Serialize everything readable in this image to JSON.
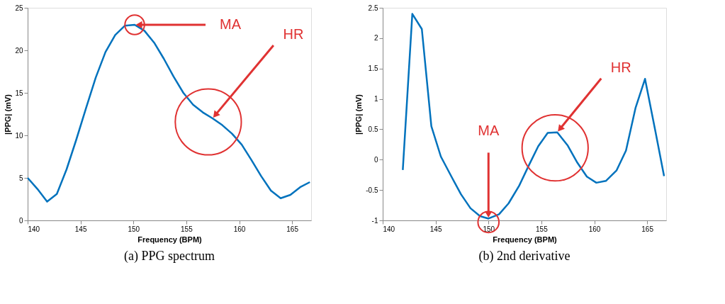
{
  "chart_data": [
    {
      "type": "line",
      "title": "(a) PPG spectrum",
      "xlabel": "Frequency (BPM)",
      "ylabel": "|PPG| (mV)",
      "x": [
        140,
        140.92,
        141.84,
        142.76,
        143.68,
        144.6,
        145.52,
        146.44,
        147.36,
        148.28,
        149.2,
        150.12,
        151.04,
        151.96,
        152.88,
        153.8,
        154.72,
        155.64,
        156.56,
        157.48,
        158.4,
        159.32,
        160.24,
        161.16,
        162.08,
        163.0,
        163.92,
        164.84,
        165.76,
        166.68
      ],
      "series": [
        {
          "color": "#0072bd",
          "values": [
            5.0,
            3.7,
            2.2,
            3.1,
            6.0,
            9.5,
            13.2,
            16.8,
            19.8,
            21.8,
            22.9,
            23.0,
            22.3,
            20.9,
            19.0,
            16.9,
            15.0,
            13.6,
            12.7,
            12.0,
            11.2,
            10.2,
            8.9,
            7.1,
            5.2,
            3.5,
            2.6,
            3.0,
            3.9,
            4.5
          ]
        }
      ],
      "xlim": [
        140,
        166.8
      ],
      "xticks": [
        140,
        145,
        150,
        155,
        160,
        165
      ],
      "ylim": [
        0,
        25
      ],
      "yticks": [
        0,
        5,
        10,
        15,
        20,
        25
      ],
      "grid": false,
      "marker": "none",
      "annotations": [
        {
          "text": "MA",
          "x": 150.12,
          "y": 23.0
        },
        {
          "text": "HR",
          "x": 157.48,
          "y": 12.0
        }
      ]
    },
    {
      "type": "line",
      "title": "(b) 2nd derivative",
      "xlabel": "Frequency (BPM)",
      "ylabel": "|PPG| (mV)",
      "x": [
        141.9,
        142.8,
        143.7,
        144.6,
        145.5,
        146.5,
        147.4,
        148.3,
        149.2,
        150.0,
        151.0,
        151.9,
        152.9,
        153.8,
        154.7,
        155.6,
        156.5,
        157.5,
        158.4,
        159.3,
        160.2,
        161.1,
        162.1,
        163.0,
        163.9,
        164.8,
        165.8,
        166.6
      ],
      "series": [
        {
          "color": "#0072bd",
          "values": [
            -0.17,
            2.4,
            2.15,
            0.55,
            0.05,
            -0.28,
            -0.57,
            -0.8,
            -0.93,
            -0.97,
            -0.9,
            -0.72,
            -0.43,
            -0.1,
            0.22,
            0.44,
            0.45,
            0.23,
            -0.05,
            -0.28,
            -0.38,
            -0.35,
            -0.18,
            0.15,
            0.85,
            1.33,
            0.45,
            -0.27
          ]
        }
      ],
      "xlim": [
        140,
        166.8
      ],
      "xticks": [
        140,
        145,
        150,
        155,
        160,
        165
      ],
      "ylim": [
        -1,
        2.5
      ],
      "yticks": [
        -1,
        -0.5,
        0,
        0.5,
        1,
        1.5,
        2,
        2.5
      ],
      "grid": false,
      "marker": "none",
      "annotations": [
        {
          "text": "MA",
          "x": 150.0,
          "y": -0.97
        },
        {
          "text": "HR",
          "x": 156.5,
          "y": 0.45
        }
      ]
    }
  ]
}
